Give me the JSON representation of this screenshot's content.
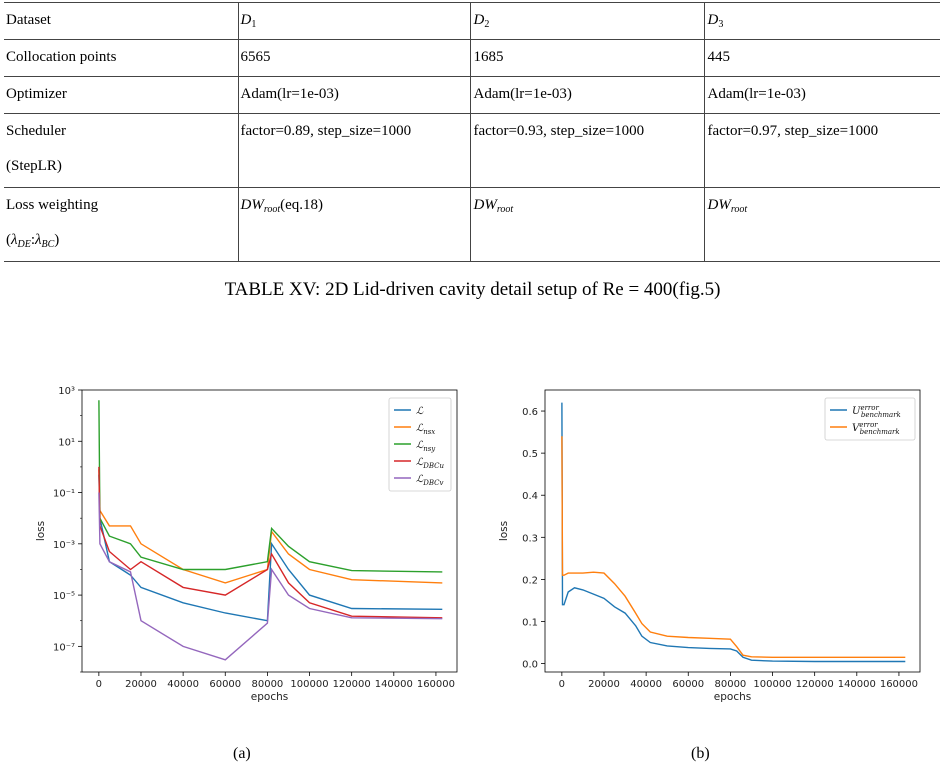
{
  "table": {
    "headers": [
      "Dataset",
      "D",
      "D",
      "D"
    ],
    "header_subs": [
      "",
      "1",
      "2",
      "3"
    ],
    "rows": {
      "collocation": {
        "label": "Collocation points",
        "values": [
          "6565",
          "1685",
          "445"
        ]
      },
      "optimizer": {
        "label": "Optimizer",
        "values": [
          "Adam(lr=1e-03)",
          "Adam(lr=1e-03)",
          "Adam(lr=1e-03)"
        ]
      },
      "scheduler": {
        "label": "Scheduler",
        "label2": "(StepLR)",
        "values": [
          "factor=0.89, step_size=1000",
          "factor=0.93, step_size=1000",
          "factor=0.97, step_size=1000"
        ]
      },
      "loss_weighting": {
        "label": "Loss weighting",
        "label2_a": "λ",
        "label2_a_sub": "DE",
        "label2_sep": ":",
        "label2_b": "λ",
        "label2_b_sub": "BC",
        "dw_main": "DW",
        "dw_sub": "root",
        "dw_note": "(eq.18)"
      }
    }
  },
  "table_caption": "TABLE XV: 2D Lid-driven cavity detail setup of Re = 400(fig.5)",
  "chart_data": [
    {
      "type": "line",
      "yscale": "log",
      "xlabel": "epochs",
      "ylabel": "loss",
      "xlim": [
        -8000,
        170000
      ],
      "ylim_exp": [
        -8,
        3
      ],
      "x_ticks": [
        0,
        20000,
        40000,
        60000,
        80000,
        100000,
        120000,
        140000,
        160000
      ],
      "y_ticks": [
        "10³",
        "10¹",
        "10⁻¹",
        "10⁻³",
        "10⁻⁵",
        "10⁻⁷"
      ],
      "legend_position": "top-right",
      "series": [
        {
          "name": "ℒ",
          "sub": "",
          "color": "#1f77b4",
          "x": [
            0,
            500,
            5000,
            15000,
            20000,
            40000,
            60000,
            80000,
            82000,
            90000,
            100000,
            120000,
            163000
          ],
          "y": [
            0.5,
            0.01,
            0.0002,
            6e-05,
            2e-05,
            5e-06,
            2e-06,
            1e-06,
            0.001,
            0.0001,
            1e-05,
            3e-06,
            2.8e-06
          ]
        },
        {
          "name": "ℒ",
          "sub": "ns",
          "sub2": "x",
          "color": "#ff7f0e",
          "x": [
            0,
            500,
            5000,
            15000,
            20000,
            40000,
            60000,
            80000,
            82000,
            90000,
            100000,
            120000,
            163000
          ],
          "y": [
            0.8,
            0.02,
            0.005,
            0.005,
            0.001,
            0.0001,
            3e-05,
            0.0001,
            0.003,
            0.0004,
            0.0001,
            4e-05,
            3e-05
          ]
        },
        {
          "name": "ℒ",
          "sub": "ns",
          "sub2": "y",
          "color": "#2ca02c",
          "x": [
            0,
            500,
            5000,
            15000,
            20000,
            40000,
            60000,
            80000,
            82000,
            90000,
            100000,
            120000,
            163000
          ],
          "y": [
            400,
            0.01,
            0.002,
            0.001,
            0.0003,
            0.0001,
            0.0001,
            0.0002,
            0.004,
            0.0008,
            0.0002,
            9e-05,
            8e-05
          ]
        },
        {
          "name": "ℒ",
          "sub": "DBC",
          "sub2": "u",
          "color": "#d62728",
          "x": [
            0,
            500,
            5000,
            15000,
            20000,
            40000,
            60000,
            80000,
            82000,
            90000,
            100000,
            120000,
            163000
          ],
          "y": [
            1,
            0.005,
            0.0005,
            0.0001,
            0.0002,
            2e-05,
            1e-05,
            0.0001,
            0.0004,
            3e-05,
            5e-06,
            1.5e-06,
            1.3e-06
          ]
        },
        {
          "name": "ℒ",
          "sub": "DBC",
          "sub2": "v",
          "color": "#9467bd",
          "x": [
            0,
            500,
            5000,
            15000,
            20000,
            40000,
            60000,
            80000,
            82000,
            90000,
            100000,
            120000,
            163000
          ],
          "y": [
            0.1,
            0.001,
            0.0002,
            8e-05,
            1e-06,
            1e-07,
            3e-08,
            8e-07,
            0.0001,
            1e-05,
            3e-06,
            1.3e-06,
            1.2e-06
          ]
        }
      ]
    },
    {
      "type": "line",
      "xlabel": "epochs",
      "ylabel": "loss",
      "xlim": [
        -8000,
        170000
      ],
      "ylim": [
        -0.02,
        0.65
      ],
      "x_ticks": [
        0,
        20000,
        40000,
        60000,
        80000,
        100000,
        120000,
        140000,
        160000
      ],
      "y_ticks": [
        0.0,
        0.1,
        0.2,
        0.3,
        0.4,
        0.5,
        0.6
      ],
      "legend_position": "top-right",
      "series": [
        {
          "name": "U",
          "sup": "error",
          "sub": "benchmark",
          "color": "#1f77b4",
          "x": [
            0,
            300,
            1000,
            3000,
            6000,
            10000,
            15000,
            20000,
            25000,
            30000,
            35000,
            38000,
            42000,
            50000,
            60000,
            70000,
            80000,
            83000,
            86000,
            90000,
            100000,
            120000,
            140000,
            163000
          ],
          "y": [
            0.62,
            0.14,
            0.14,
            0.17,
            0.18,
            0.175,
            0.165,
            0.155,
            0.135,
            0.12,
            0.09,
            0.065,
            0.05,
            0.042,
            0.038,
            0.036,
            0.035,
            0.03,
            0.015,
            0.008,
            0.006,
            0.005,
            0.005,
            0.005
          ]
        },
        {
          "name": "V",
          "sup": "error",
          "sub": "benchmark",
          "color": "#ff7f0e",
          "x": [
            0,
            300,
            1000,
            3000,
            6000,
            10000,
            15000,
            20000,
            25000,
            30000,
            35000,
            38000,
            42000,
            50000,
            60000,
            70000,
            80000,
            83000,
            86000,
            90000,
            100000,
            120000,
            140000,
            163000
          ],
          "y": [
            0.54,
            0.21,
            0.21,
            0.215,
            0.215,
            0.215,
            0.217,
            0.215,
            0.19,
            0.16,
            0.12,
            0.095,
            0.075,
            0.065,
            0.062,
            0.06,
            0.058,
            0.04,
            0.02,
            0.016,
            0.015,
            0.015,
            0.015,
            0.015
          ]
        }
      ]
    }
  ],
  "panel_labels": [
    "(a)",
    "(b)"
  ]
}
